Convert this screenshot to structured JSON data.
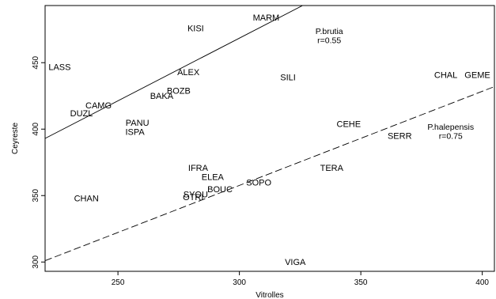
{
  "chart_data": {
    "type": "scatter",
    "xlabel": "Vitrolles",
    "ylabel": "Ceyreste",
    "xlim": [
      220,
      405
    ],
    "ylim": [
      293,
      493
    ],
    "x_ticks": [
      250,
      300,
      350,
      400
    ],
    "y_ticks": [
      300,
      350,
      400,
      450
    ],
    "grid": false,
    "marker": "text-label",
    "points": [
      {
        "label": "LASS",
        "x": 226,
        "y": 447
      },
      {
        "label": "KISI",
        "x": 282,
        "y": 476
      },
      {
        "label": "MARM",
        "x": 311,
        "y": 484
      },
      {
        "label": "ALEX",
        "x": 279,
        "y": 443
      },
      {
        "label": "BOZB",
        "x": 275,
        "y": 429
      },
      {
        "label": "BAKA",
        "x": 268,
        "y": 425
      },
      {
        "label": "SILI",
        "x": 320,
        "y": 439
      },
      {
        "label": "CAMG",
        "x": 242,
        "y": 418
      },
      {
        "label": "DUZL",
        "x": 235,
        "y": 412
      },
      {
        "label": "PANU",
        "x": 258,
        "y": 405
      },
      {
        "label": "ISPA",
        "x": 257,
        "y": 398
      },
      {
        "label": "CEHE",
        "x": 345,
        "y": 404
      },
      {
        "label": "SERR",
        "x": 366,
        "y": 395
      },
      {
        "label": "CHAL",
        "x": 385,
        "y": 441
      },
      {
        "label": "GEME",
        "x": 398,
        "y": 441
      },
      {
        "label": "IFRA",
        "x": 283,
        "y": 371
      },
      {
        "label": "ELEA",
        "x": 289,
        "y": 364
      },
      {
        "label": "SOPO",
        "x": 308,
        "y": 360
      },
      {
        "label": "BOUC",
        "x": 292,
        "y": 355
      },
      {
        "label": "SYOU",
        "x": 282,
        "y": 351
      },
      {
        "label": "OTRI",
        "x": 281,
        "y": 349
      },
      {
        "label": "CHAN",
        "x": 237,
        "y": 348
      },
      {
        "label": "TERA",
        "x": 338,
        "y": 371
      },
      {
        "label": "VIGA",
        "x": 323,
        "y": 300
      }
    ],
    "regression_lines": [
      {
        "style": "solid",
        "x": [
          220,
          326
        ],
        "y": [
          393,
          493
        ]
      },
      {
        "style": "dashed",
        "x": [
          220,
          405
        ],
        "y": [
          301,
          432
        ]
      }
    ],
    "annotations": [
      {
        "text": "P.brutia",
        "x": 337,
        "y": 474
      },
      {
        "text": "r=0.55",
        "x": 337,
        "y": 467
      },
      {
        "text": "P.halepensis",
        "x": 387,
        "y": 402
      },
      {
        "text": "r=0.75",
        "x": 387,
        "y": 395
      }
    ]
  }
}
